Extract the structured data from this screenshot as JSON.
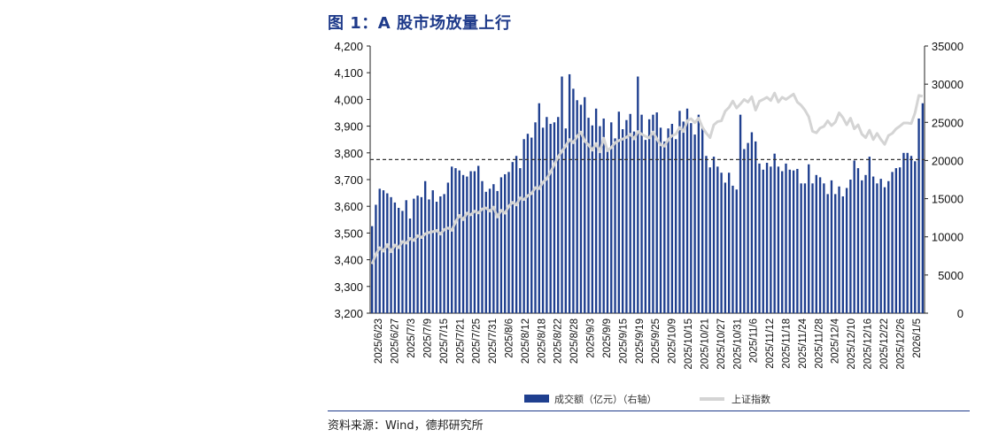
{
  "page": {
    "title": "图 1：A 股市场放量上行",
    "source": "资料来源：Wind，德邦研究所"
  },
  "colors": {
    "bar": "#1f3f8f",
    "line": "#d4d4d4",
    "ref": "#333333",
    "accent": "#1e3a8a"
  },
  "chart_data": {
    "type": "bar",
    "title": "图 1：A 股市场放量上行",
    "x_tick_labels": [
      "2025/6/23",
      "2025/6/27",
      "2025/7/3",
      "2025/7/9",
      "2025/7/15",
      "2025/7/21",
      "2025/7/25",
      "2025/7/31",
      "2025/8/6",
      "2025/8/12",
      "2025/8/18",
      "2025/8/22",
      "2025/8/28",
      "2025/9/3",
      "2025/9/9",
      "2025/9/15",
      "2025/9/19",
      "2025/9/25",
      "2025/10/9",
      "2025/10/15",
      "2025/10/21",
      "2025/10/27",
      "2025/10/31",
      "2025/11/6",
      "2025/11/12",
      "2025/11/18",
      "2025/11/24",
      "2025/11/28",
      "2025/12/4",
      "2025/12/10",
      "2025/12/16",
      "2025/12/22",
      "2025/12/26",
      "2026/1/5"
    ],
    "y_left": {
      "min": 3200,
      "max": 4200,
      "step": 100,
      "tick_labels": [
        "3,200",
        "3,300",
        "3,400",
        "3,500",
        "3,600",
        "3,700",
        "3,800",
        "3,900",
        "4,000",
        "4,100",
        "4,200"
      ]
    },
    "y_right": {
      "min": 0,
      "max": 35000,
      "step": 5000,
      "tick_labels": [
        "0",
        "5000",
        "10000",
        "15000",
        "20000",
        "25000",
        "30000",
        "35000"
      ]
    },
    "reference_line": {
      "axis": "left",
      "value": 3775,
      "style": "dashed"
    },
    "series": [
      {
        "name": "成交额（亿元）（右轴）",
        "type": "bar",
        "axis": "right",
        "values": [
          11400,
          14200,
          16300,
          16100,
          15700,
          15200,
          14500,
          13800,
          13400,
          14800,
          12400,
          15000,
          15400,
          15200,
          17300,
          14900,
          16100,
          14600,
          15300,
          15600,
          17100,
          19200,
          19000,
          18700,
          18100,
          17900,
          18600,
          18600,
          19300,
          17300,
          15900,
          16300,
          16900,
          16000,
          17800,
          18200,
          18500,
          19800,
          20600,
          19000,
          22800,
          23500,
          23000,
          25000,
          27500,
          24300,
          25700,
          24800,
          25000,
          25700,
          31000,
          24200,
          31300,
          29400,
          27900,
          27300,
          28300,
          25600,
          24600,
          26800,
          24500,
          25500,
          21600,
          25000,
          22900,
          26400,
          24100,
          25300,
          26100,
          23800,
          31000,
          26000,
          22700,
          25400,
          26000,
          26300,
          24300,
          22500,
          24200,
          24800,
          22800,
          26500,
          25100,
          26800,
          24900,
          23400,
          26000,
          24300,
          20600,
          19100,
          20500,
          19200,
          18400,
          17100,
          18400,
          16700,
          16200,
          26000,
          21500,
          22300,
          23700,
          22500,
          19600,
          18800,
          19700,
          19200,
          20900,
          19200,
          18600,
          19600,
          18800,
          18700,
          18900,
          17000,
          17000,
          19500,
          17000,
          18100,
          17800,
          17000,
          15600,
          17400,
          15600,
          16600,
          15300,
          16400,
          17500,
          20000,
          19000,
          17400,
          18100,
          20500,
          17900,
          17000,
          17600,
          16500,
          17300,
          18500,
          19000,
          19100,
          21000,
          21000,
          20600,
          19900,
          25500,
          27500
        ]
      },
      {
        "name": "上证指数",
        "type": "line",
        "axis": "left",
        "values": [
          3384,
          3420,
          3445,
          3432,
          3457,
          3430,
          3455,
          3445,
          3468,
          3462,
          3480,
          3472,
          3490,
          3483,
          3497,
          3502,
          3505,
          3510,
          3496,
          3513,
          3519,
          3510,
          3542,
          3566,
          3550,
          3575,
          3568,
          3582,
          3575,
          3590,
          3594,
          3582,
          3597,
          3560,
          3585,
          3574,
          3600,
          3615,
          3605,
          3632,
          3625,
          3640,
          3648,
          3670,
          3666,
          3690,
          3703,
          3728,
          3757,
          3785,
          3806,
          3826,
          3850,
          3838,
          3862,
          3878,
          3844,
          3830,
          3810,
          3835,
          3804,
          3855,
          3808,
          3820,
          3838,
          3846,
          3852,
          3858,
          3870,
          3852,
          3880,
          3870,
          3862,
          3856,
          3878,
          3852,
          3830,
          3825,
          3850,
          3864,
          3870,
          3895,
          3880,
          3920,
          3928,
          3913,
          3930,
          3896,
          3874,
          3857,
          3905,
          3917,
          3920,
          3956,
          3970,
          3994,
          3968,
          3983,
          4000,
          3990,
          4010,
          3960,
          3993,
          4000,
          4008,
          3996,
          4024,
          3990,
          4008,
          4000,
          4010,
          4020,
          3990,
          3978,
          3960,
          3935,
          3881,
          3875,
          3893,
          3899,
          3920,
          3902,
          3915,
          3950,
          3932,
          3905,
          3930,
          3890,
          3905,
          3870,
          3857,
          3885,
          3850,
          3873,
          3850,
          3832,
          3865,
          3873,
          3890,
          3900,
          3912,
          3912,
          3910,
          3950,
          4015,
          4012
        ]
      }
    ],
    "legend": [
      {
        "label": "成交额（亿元）（右轴）",
        "kind": "bar"
      },
      {
        "label": "上证指数",
        "kind": "line"
      }
    ],
    "legend_position": "bottom-center",
    "grid": false
  }
}
